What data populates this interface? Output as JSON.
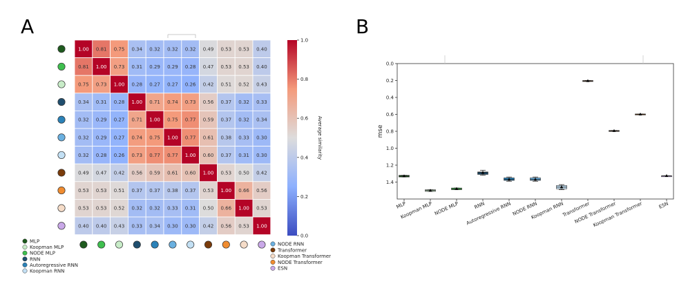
{
  "panels": {
    "a": "A",
    "b": "B"
  },
  "chart_data": [
    {
      "type": "heatmap",
      "title": "",
      "colorbar_label": "Average similarity",
      "colorbar_range": [
        0.0,
        1.0
      ],
      "colorbar_ticks": [
        "0.0",
        "0.2",
        "0.4",
        "0.6",
        "0.8",
        "1.0"
      ],
      "models": [
        "MLP",
        "Koopman MLP",
        "NODE MLP",
        "RNN",
        "Autoregressive RNN",
        "NODE RNN",
        "Koopman RNN",
        "Transformer",
        "Koopman Transformer",
        "NODE Transformer",
        "ESN"
      ],
      "row_order": [
        "MLP",
        "NODE MLP",
        "Koopman MLP",
        "RNN",
        "Autoregressive RNN",
        "NODE RNN",
        "Koopman RNN",
        "Transformer",
        "NODE Transformer",
        "Koopman Transformer",
        "ESN"
      ],
      "colors": {
        "MLP": "#1e5a1e",
        "Koopman MLP": "#c8ecc8",
        "NODE MLP": "#3fbf4f",
        "RNN": "#1f4e6e",
        "Autoregressive RNN": "#2b82b8",
        "NODE RNN": "#6ab0e0",
        "Koopman RNN": "#c3e0f4",
        "Transformer": "#7a3b0a",
        "Koopman Transformer": "#f5dcc8",
        "NODE Transformer": "#f08c30",
        "ESN": "#c9a8e8"
      },
      "matrix": [
        [
          1.0,
          0.81,
          0.75,
          0.34,
          0.32,
          0.32,
          0.32,
          0.49,
          0.53,
          0.53,
          0.4
        ],
        [
          0.81,
          1.0,
          0.73,
          0.31,
          0.29,
          0.29,
          0.28,
          0.47,
          0.53,
          0.53,
          0.4
        ],
        [
          0.75,
          0.73,
          1.0,
          0.28,
          0.27,
          0.27,
          0.26,
          0.42,
          0.51,
          0.52,
          0.43
        ],
        [
          0.34,
          0.31,
          0.28,
          1.0,
          0.71,
          0.74,
          0.73,
          0.56,
          0.37,
          0.32,
          0.33
        ],
        [
          0.32,
          0.29,
          0.27,
          0.71,
          1.0,
          0.75,
          0.77,
          0.59,
          0.37,
          0.32,
          0.34
        ],
        [
          0.32,
          0.29,
          0.27,
          0.74,
          0.75,
          1.0,
          0.77,
          0.61,
          0.38,
          0.33,
          0.3
        ],
        [
          0.32,
          0.28,
          0.26,
          0.73,
          0.77,
          0.77,
          1.0,
          0.6,
          0.37,
          0.31,
          0.3
        ],
        [
          0.49,
          0.47,
          0.42,
          0.56,
          0.59,
          0.61,
          0.6,
          1.0,
          0.53,
          0.5,
          0.42
        ],
        [
          0.53,
          0.53,
          0.51,
          0.37,
          0.37,
          0.38,
          0.37,
          0.53,
          1.0,
          0.66,
          0.56
        ],
        [
          0.53,
          0.53,
          0.52,
          0.32,
          0.32,
          0.33,
          0.31,
          0.5,
          0.66,
          1.0,
          0.53
        ],
        [
          0.4,
          0.4,
          0.43,
          0.33,
          0.34,
          0.3,
          0.3,
          0.42,
          0.56,
          0.53,
          1.0
        ]
      ],
      "legend_left": [
        "MLP",
        "Koopman MLP",
        "NODE MLP",
        "RNN",
        "Autoregressive RNN",
        "Koopman RNN"
      ],
      "legend_right": [
        "NODE RNN",
        "Transformer",
        "Koopman Transformer",
        "NODE Transformer",
        "ESN"
      ]
    },
    {
      "type": "box",
      "ylabel": "mse",
      "ylim": [
        1.6,
        0.0
      ],
      "y_ticks": [
        "0.0",
        "0.2",
        "0.4",
        "0.6",
        "0.8",
        "1.0",
        "1.2",
        "1.4"
      ],
      "categories": [
        "MLP",
        "Koopman MLP",
        "NODE MLP",
        "RNN",
        "Autoregressive RNN",
        "NODE RNN",
        "Koopman RNN",
        "Transformer",
        "NODE Transformer",
        "Koopman Transformer",
        "ESN"
      ],
      "box_colors": [
        "#1e5a1e",
        "#c8ecc8",
        "#3fbf4f",
        "#1f4e6e",
        "#2b82b8",
        "#6ab0e0",
        "#c3e0f4",
        "#7a3b0a",
        "#7a3b0a",
        "#f08c30",
        "#c9a8e8"
      ],
      "boxes": [
        {
          "q1": 1.32,
          "q3": 1.34,
          "median": 1.33,
          "mean": 1.33,
          "whisker_low": 1.32,
          "whisker_high": 1.34
        },
        {
          "q1": 1.49,
          "q3": 1.51,
          "median": 1.5,
          "mean": 1.5,
          "whisker_low": 1.49,
          "whisker_high": 1.51
        },
        {
          "q1": 1.47,
          "q3": 1.49,
          "median": 1.48,
          "mean": 1.48,
          "whisker_low": 1.47,
          "whisker_high": 1.49
        },
        {
          "q1": 1.28,
          "q3": 1.31,
          "median": 1.29,
          "mean": 1.29,
          "whisker_low": 1.26,
          "whisker_high": 1.32
        },
        {
          "q1": 1.35,
          "q3": 1.38,
          "median": 1.37,
          "mean": 1.37,
          "whisker_low": 1.34,
          "whisker_high": 1.39
        },
        {
          "q1": 1.35,
          "q3": 1.38,
          "median": 1.37,
          "mean": 1.37,
          "whisker_low": 1.34,
          "whisker_high": 1.39
        },
        {
          "q1": 1.44,
          "q3": 1.48,
          "median": 1.46,
          "mean": 1.46,
          "whisker_low": 1.43,
          "whisker_high": 1.49
        },
        {
          "q1": 0.2,
          "q3": 0.21,
          "median": 0.205,
          "mean": 0.205,
          "whisker_low": 0.2,
          "whisker_high": 0.21
        },
        {
          "q1": 0.79,
          "q3": 0.8,
          "median": 0.795,
          "mean": 0.795,
          "whisker_low": 0.79,
          "whisker_high": 0.8
        },
        {
          "q1": 0.595,
          "q3": 0.605,
          "median": 0.6,
          "mean": 0.6,
          "whisker_low": 0.595,
          "whisker_high": 0.605
        },
        {
          "q1": 1.325,
          "q3": 1.33,
          "median": 1.327,
          "mean": 1.327,
          "whisker_low": 1.325,
          "whisker_high": 1.33
        }
      ]
    }
  ]
}
